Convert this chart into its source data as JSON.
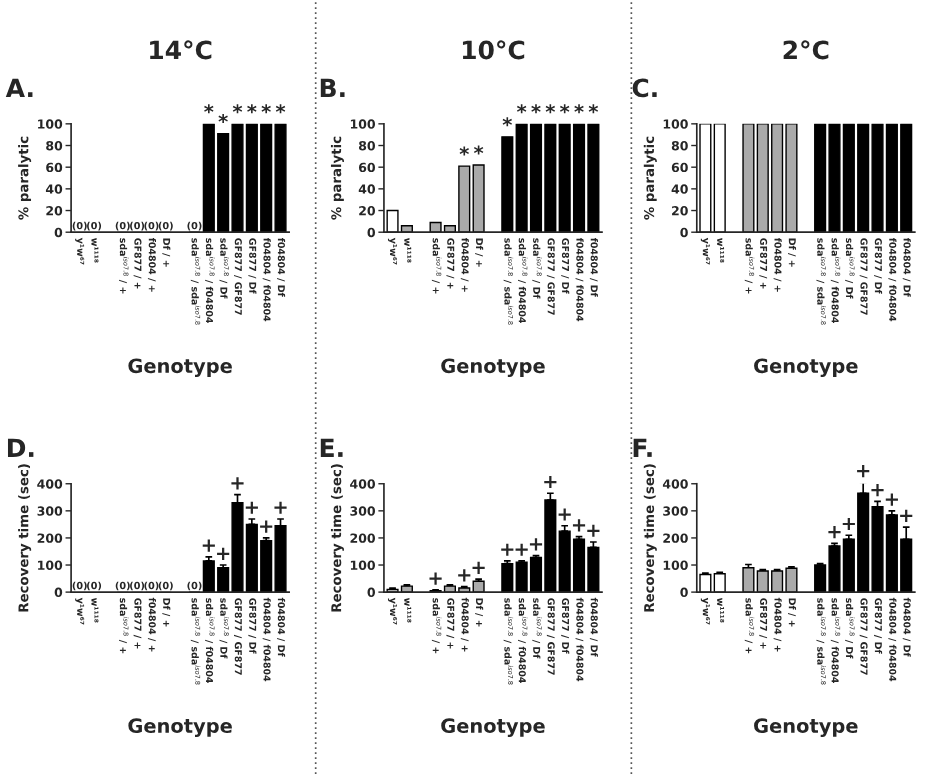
{
  "chart_data": [
    {
      "type": "bar",
      "title": "14°C",
      "subtitle": "A.",
      "xlabel": "Genotype",
      "ylabel": "% paralytic",
      "ylim": [
        0,
        100
      ],
      "yticks": [
        0,
        20,
        40,
        60,
        80,
        100
      ],
      "grid": false,
      "legend": false,
      "categories": [
        "y¹w⁶⁷",
        "w¹¹¹⁸",
        null,
        "sda$^{iso7.8}$ / +",
        "GF877 / +",
        "f04804 / +",
        "Df / +",
        null,
        "sda$^{iso7.8}$ / sda$^{iso7.8}$",
        "sda$^{iso7.8}$ / f04804",
        "sda$^{iso7.8}$ / Df",
        "GF877 / GF877",
        "GF877 / Df",
        "f04804 / f04804",
        "f04804 / Df"
      ],
      "values": [
        0,
        0,
        null,
        0,
        0,
        0,
        0,
        null,
        0,
        100,
        91,
        100,
        100,
        100,
        100
      ],
      "colors": [
        "#ffffff",
        "#ffffff",
        null,
        "#aaaaaa",
        "#aaaaaa",
        "#aaaaaa",
        "#aaaaaa",
        null,
        "#000000",
        "#000000",
        "#000000",
        "#000000",
        "#000000",
        "#000000",
        "#000000"
      ],
      "value_labels": [
        "(0)",
        "(0)",
        null,
        "(0)",
        "(0)",
        "(0)",
        "(0)",
        null,
        "(0)",
        "*",
        "*",
        "*",
        "*",
        "*",
        "*"
      ]
    },
    {
      "type": "bar",
      "title": "10°C",
      "subtitle": "B.",
      "xlabel": "Genotype",
      "ylabel": "% paralytic",
      "ylim": [
        0,
        100
      ],
      "yticks": [
        0,
        20,
        40,
        60,
        80,
        100
      ],
      "grid": false,
      "legend": false,
      "categories": [
        "y¹w⁶⁷",
        "w¹¹¹⁸",
        null,
        "sda$^{iso7.8}$ / +",
        "GF877 / +",
        "f04804 / +",
        "Df / +",
        null,
        "sda$^{iso7.8}$ / sda$^{iso7.8}$",
        "sda$^{iso7.8}$ / f04804",
        "sda$^{iso7.8}$ / Df",
        "GF877 / GF877",
        "GF877 / Df",
        "f04804 / f04804",
        "f04804 / Df"
      ],
      "values": [
        20,
        6,
        null,
        9,
        6,
        61,
        62,
        null,
        88,
        100,
        100,
        100,
        100,
        100,
        100
      ],
      "colors": [
        "#ffffff",
        "#aaaaaa",
        null,
        "#aaaaaa",
        "#aaaaaa",
        "#aaaaaa",
        "#aaaaaa",
        null,
        "#000000",
        "#000000",
        "#000000",
        "#000000",
        "#000000",
        "#000000",
        "#000000"
      ],
      "value_labels": [
        null,
        null,
        null,
        null,
        null,
        "*",
        "*",
        null,
        "*",
        "*",
        "*",
        "*",
        "*",
        "*",
        "*"
      ]
    },
    {
      "type": "bar",
      "title": "2°C",
      "subtitle": "C.",
      "xlabel": "Genotype",
      "ylabel": "% paralytic",
      "ylim": [
        0,
        100
      ],
      "yticks": [
        0,
        20,
        40,
        60,
        80,
        100
      ],
      "grid": false,
      "legend": false,
      "categories": [
        "y¹w⁶⁷",
        "w¹¹¹⁸",
        null,
        "sda$^{iso7.8}$ / +",
        "GF877 / +",
        "f04804 / +",
        "Df / +",
        null,
        "sda$^{iso7.8}$ / sda$^{iso7.8}$",
        "sda$^{iso7.8}$ / f04804",
        "sda$^{iso7.8}$ / Df",
        "GF877 / GF877",
        "GF877 / Df",
        "f04804 / f04804",
        "f04804 / Df"
      ],
      "values": [
        100,
        100,
        null,
        100,
        100,
        100,
        100,
        null,
        100,
        100,
        100,
        100,
        100,
        100,
        100
      ],
      "colors": [
        "#ffffff",
        "#ffffff",
        null,
        "#aaaaaa",
        "#aaaaaa",
        "#aaaaaa",
        "#aaaaaa",
        null,
        "#000000",
        "#000000",
        "#000000",
        "#000000",
        "#000000",
        "#000000",
        "#000000"
      ]
    },
    {
      "type": "bar",
      "subtitle": "D.",
      "xlabel": "Genotype",
      "ylabel": "Recovery time (sec)",
      "ylim": [
        0,
        400
      ],
      "yticks": [
        0,
        100,
        200,
        300,
        400
      ],
      "grid": false,
      "legend": false,
      "categories": [
        "y¹w⁶⁷",
        "w¹¹¹⁸",
        null,
        "sda$^{iso7.8}$ / +",
        "GF877 / +",
        "f04804 / +",
        "Df / +",
        null,
        "sda$^{iso7.8}$ / sda$^{iso7.8}$",
        "sda$^{iso7.8}$ / f04804",
        "sda$^{iso7.8}$ / Df",
        "GF877 / GF877",
        "GF877 / Df",
        "f04804 / f04804",
        "f04804 / Df"
      ],
      "values": [
        0,
        0,
        null,
        0,
        0,
        0,
        0,
        null,
        0,
        115,
        90,
        330,
        250,
        190,
        245
      ],
      "errors": [
        null,
        null,
        null,
        null,
        null,
        null,
        null,
        null,
        null,
        [
          115,
          130
        ],
        [
          90,
          100
        ],
        [
          330,
          360
        ],
        [
          250,
          270
        ],
        [
          190,
          200
        ],
        [
          245,
          270
        ]
      ],
      "colors": [
        "#ffffff",
        "#ffffff",
        null,
        "#aaaaaa",
        "#aaaaaa",
        "#aaaaaa",
        "#aaaaaa",
        null,
        "#000000",
        "#000000",
        "#000000",
        "#000000",
        "#000000",
        "#000000",
        "#000000"
      ],
      "value_labels": [
        "(0)",
        "(0)",
        null,
        "(0)",
        "(0)",
        "(0)",
        "(0)",
        null,
        "(0)",
        "+",
        "+",
        "+",
        "+",
        "+",
        "+"
      ]
    },
    {
      "type": "bar",
      "subtitle": "E.",
      "xlabel": "Genotype",
      "ylabel": "Recovery time (sec)",
      "ylim": [
        0,
        400
      ],
      "yticks": [
        0,
        100,
        200,
        300,
        400
      ],
      "grid": false,
      "legend": false,
      "categories": [
        "y¹w⁶⁷",
        "w¹¹¹⁸",
        null,
        "sda$^{iso7.8}$ / +",
        "GF877 / +",
        "f04804 / +",
        "Df / +",
        null,
        "sda$^{iso7.8}$ / sda$^{iso7.8}$",
        "sda$^{iso7.8}$ / f04804",
        "sda$^{iso7.8}$ / Df",
        "GF877 / GF877",
        "GF877 / Df",
        "f04804 / f04804",
        "f04804 / Df"
      ],
      "values": [
        10,
        22,
        null,
        5,
        22,
        15,
        40,
        null,
        105,
        110,
        128,
        340,
        225,
        195,
        165
      ],
      "errors": [
        [
          10,
          15
        ],
        [
          22,
          27
        ],
        null,
        [
          5,
          8
        ],
        [
          22,
          27
        ],
        [
          15,
          20
        ],
        [
          40,
          48
        ],
        null,
        [
          105,
          115
        ],
        [
          110,
          115
        ],
        [
          128,
          135
        ],
        [
          340,
          365
        ],
        [
          225,
          245
        ],
        [
          195,
          205
        ],
        [
          165,
          185
        ]
      ],
      "colors": [
        "#aaaaaa",
        "#aaaaaa",
        null,
        "#aaaaaa",
        "#aaaaaa",
        "#aaaaaa",
        "#aaaaaa",
        null,
        "#000000",
        "#000000",
        "#000000",
        "#000000",
        "#000000",
        "#000000",
        "#000000"
      ],
      "value_labels": [
        null,
        null,
        null,
        "+",
        null,
        "+",
        "+",
        null,
        "+",
        "+",
        "+",
        "+",
        "+",
        "+",
        "+"
      ]
    },
    {
      "type": "bar",
      "subtitle": "F.",
      "xlabel": "Genotype",
      "ylabel": "Recovery time (sec)",
      "ylim": [
        0,
        400
      ],
      "yticks": [
        0,
        100,
        200,
        300,
        400
      ],
      "grid": false,
      "legend": false,
      "categories": [
        "y¹w⁶⁷",
        "w¹¹¹⁸",
        null,
        "sda$^{iso7.8}$ / +",
        "GF877 / +",
        "f04804 / +",
        "Df / +",
        null,
        "sda$^{iso7.8}$ / sda$^{iso7.8}$",
        "sda$^{iso7.8}$ / f04804",
        "sda$^{iso7.8}$ / Df",
        "GF877 / GF877",
        "GF877 / Df",
        "f04804 / f04804",
        "f04804 / Df"
      ],
      "values": [
        65,
        68,
        null,
        90,
        78,
        78,
        88,
        null,
        100,
        170,
        195,
        365,
        315,
        285,
        195
      ],
      "errors": [
        [
          65,
          70
        ],
        [
          68,
          73
        ],
        null,
        [
          90,
          102
        ],
        [
          78,
          83
        ],
        [
          78,
          83
        ],
        [
          88,
          93
        ],
        null,
        [
          100,
          105
        ],
        [
          170,
          180
        ],
        [
          195,
          210
        ],
        [
          365,
          405
        ],
        [
          315,
          335
        ],
        [
          285,
          300
        ],
        [
          195,
          240
        ]
      ],
      "colors": [
        "#ffffff",
        "#ffffff",
        null,
        "#aaaaaa",
        "#aaaaaa",
        "#aaaaaa",
        "#aaaaaa",
        null,
        "#000000",
        "#000000",
        "#000000",
        "#000000",
        "#000000",
        "#000000",
        "#000000"
      ],
      "value_labels": [
        null,
        null,
        null,
        null,
        null,
        null,
        null,
        null,
        null,
        "+",
        "+",
        "+",
        "+",
        "+",
        "+"
      ]
    }
  ]
}
